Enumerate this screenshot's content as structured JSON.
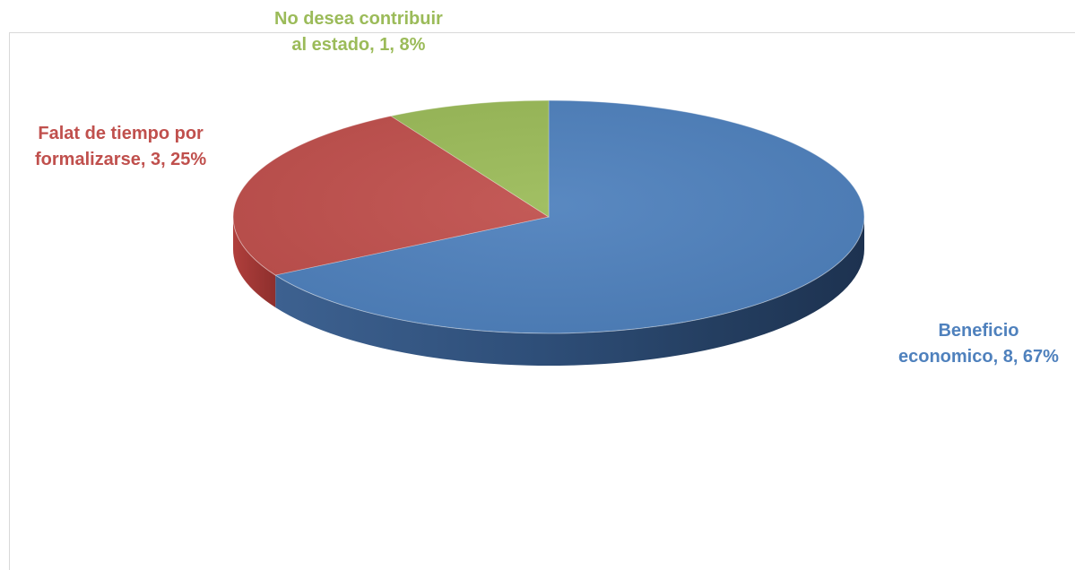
{
  "chart_data": {
    "type": "pie",
    "title": "",
    "slices": [
      {
        "name": "Beneficio economico",
        "value": 8,
        "percent": 67,
        "color": "#4f81bd",
        "label_lines": [
          "Beneficio",
          "economico, 8, 67%"
        ]
      },
      {
        "name": "Falat de tiempo por formalizarse",
        "value": 3,
        "percent": 25,
        "color": "#c0504d",
        "label_lines": [
          "Falat de tiempo por",
          "formalizarse, 3, 25%"
        ]
      },
      {
        "name": "No desea contribuir al estado",
        "value": 1,
        "percent": 8,
        "color": "#9bbb59",
        "label_lines": [
          "No desea contribuir",
          "al estado, 1, 8%"
        ]
      }
    ],
    "legend": "none",
    "style": "3d"
  }
}
